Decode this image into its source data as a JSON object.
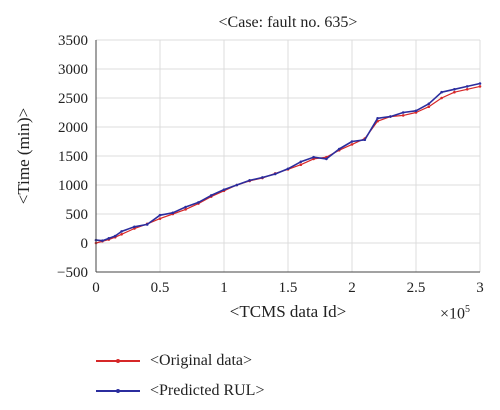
{
  "chart_data": {
    "type": "line",
    "title": "<Case: fault no. 635>",
    "xlabel": "<TCMS data Id>",
    "ylabel": "<Time (min)>",
    "x_multiplier": "×10",
    "x_multiplier_exp": "5",
    "xlim": [
      0,
      3
    ],
    "ylim": [
      -500,
      3500
    ],
    "x_ticks": [
      "0",
      "0.5",
      "1",
      "1.5",
      "2",
      "2.5",
      "3"
    ],
    "y_ticks": [
      "−500",
      "0",
      "500",
      "1000",
      "1500",
      "2000",
      "2500",
      "3000",
      "3500"
    ],
    "grid": true,
    "legend_position": "bottom",
    "series": [
      {
        "name": "<Original data>",
        "color": "#d62728",
        "x": [
          0,
          0.05,
          0.1,
          0.15,
          0.2,
          0.3,
          0.4,
          0.5,
          0.6,
          0.7,
          0.8,
          0.9,
          1.0,
          1.1,
          1.2,
          1.3,
          1.4,
          1.5,
          1.6,
          1.7,
          1.8,
          1.9,
          2.0,
          2.1,
          2.2,
          2.3,
          2.4,
          2.5,
          2.6,
          2.7,
          2.8,
          2.9,
          3.0
        ],
        "y": [
          0,
          30,
          60,
          100,
          150,
          250,
          330,
          420,
          500,
          580,
          680,
          800,
          900,
          1000,
          1070,
          1120,
          1200,
          1270,
          1350,
          1450,
          1480,
          1600,
          1700,
          1800,
          2100,
          2180,
          2200,
          2250,
          2350,
          2500,
          2600,
          2650,
          2700
        ]
      },
      {
        "name": "<Predicted RUL>",
        "color": "#2b2d9e",
        "x": [
          0,
          0.05,
          0.1,
          0.15,
          0.2,
          0.3,
          0.4,
          0.5,
          0.6,
          0.7,
          0.8,
          0.9,
          1.0,
          1.1,
          1.2,
          1.3,
          1.4,
          1.5,
          1.6,
          1.7,
          1.8,
          1.9,
          2.0,
          2.1,
          2.2,
          2.3,
          2.4,
          2.5,
          2.6,
          2.7,
          2.8,
          2.9,
          3.0
        ],
        "y": [
          50,
          40,
          80,
          120,
          200,
          280,
          320,
          480,
          520,
          620,
          700,
          820,
          920,
          1000,
          1080,
          1130,
          1190,
          1280,
          1400,
          1480,
          1450,
          1620,
          1750,
          1780,
          2150,
          2180,
          2250,
          2280,
          2400,
          2600,
          2650,
          2700,
          2750
        ]
      }
    ]
  }
}
